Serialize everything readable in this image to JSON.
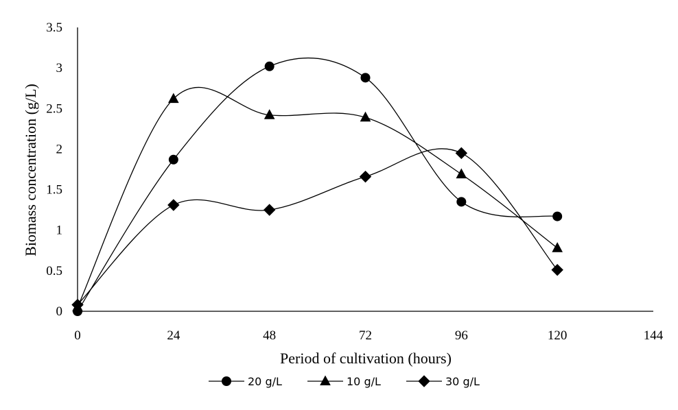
{
  "chart_data": {
    "type": "line",
    "title": "",
    "xlabel": "Period of cultivation (hours)",
    "ylabel": "Biomass concentration (g/L)",
    "xlim": [
      0,
      144
    ],
    "ylim": [
      0,
      3.5
    ],
    "x_ticks": [
      "0",
      "24",
      "48",
      "72",
      "96",
      "120",
      "144"
    ],
    "y_ticks": [
      "0",
      "0.5",
      "1",
      "1.5",
      "2",
      "2.5",
      "3",
      "3.5"
    ],
    "grid": false,
    "legend_position": "bottom",
    "smooth": true,
    "series": [
      {
        "name": "20 g/L",
        "marker": "circle",
        "color": "#000000",
        "x": [
          0,
          24,
          48,
          72,
          96,
          120
        ],
        "y": [
          0.0,
          1.87,
          3.02,
          2.88,
          1.35,
          1.17
        ]
      },
      {
        "name": "10 g/L",
        "marker": "triangle",
        "color": "#000000",
        "x": [
          0,
          24,
          48,
          72,
          96,
          120
        ],
        "y": [
          0.05,
          2.62,
          2.42,
          2.39,
          1.69,
          0.78
        ]
      },
      {
        "name": "30 g/L",
        "marker": "diamond",
        "color": "#000000",
        "x": [
          0,
          24,
          48,
          72,
          96,
          120
        ],
        "y": [
          0.08,
          1.31,
          1.25,
          1.66,
          1.95,
          0.51
        ]
      }
    ]
  }
}
